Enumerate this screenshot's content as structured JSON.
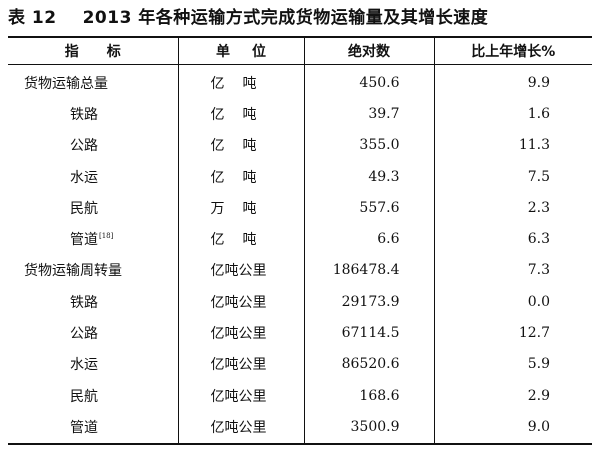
{
  "caption": {
    "label": "表 12",
    "title": "2013 年各种运输方式完成货物运输量及其增长速度"
  },
  "header": {
    "indicator": "指标",
    "unit": "单位",
    "absolute": "绝对数",
    "growth": "比上年增长%"
  },
  "rows": [
    {
      "name": "货物运输总量",
      "level": 0,
      "note": "",
      "unit": "亿吨",
      "absolute": "450.6",
      "growth": "9.9"
    },
    {
      "name": "铁路",
      "level": 1,
      "note": "",
      "unit": "亿吨",
      "absolute": "39.7",
      "growth": "1.6"
    },
    {
      "name": "公路",
      "level": 1,
      "note": "",
      "unit": "亿吨",
      "absolute": "355.0",
      "growth": "11.3"
    },
    {
      "name": "水运",
      "level": 1,
      "note": "",
      "unit": "亿吨",
      "absolute": "49.3",
      "growth": "7.5"
    },
    {
      "name": "民航",
      "level": 1,
      "note": "",
      "unit": "万吨",
      "absolute": "557.6",
      "growth": "2.3"
    },
    {
      "name": "管道",
      "level": 1,
      "note": "[18]",
      "unit": "亿吨",
      "absolute": "6.6",
      "growth": "6.3"
    },
    {
      "name": "货物运输周转量",
      "level": 0,
      "note": "",
      "unit": "亿吨公里",
      "absolute": "186478.4",
      "growth": "7.3"
    },
    {
      "name": "铁路",
      "level": 1,
      "note": "",
      "unit": "亿吨公里",
      "absolute": "29173.9",
      "growth": "0.0"
    },
    {
      "name": "公路",
      "level": 1,
      "note": "",
      "unit": "亿吨公里",
      "absolute": "67114.5",
      "growth": "12.7"
    },
    {
      "name": "水运",
      "level": 1,
      "note": "",
      "unit": "亿吨公里",
      "absolute": "86520.6",
      "growth": "5.9"
    },
    {
      "name": "民航",
      "level": 1,
      "note": "",
      "unit": "亿吨公里",
      "absolute": "168.6",
      "growth": "2.9"
    },
    {
      "name": "管道",
      "level": 1,
      "note": "",
      "unit": "亿吨公里",
      "absolute": "3500.9",
      "growth": "9.0"
    }
  ]
}
